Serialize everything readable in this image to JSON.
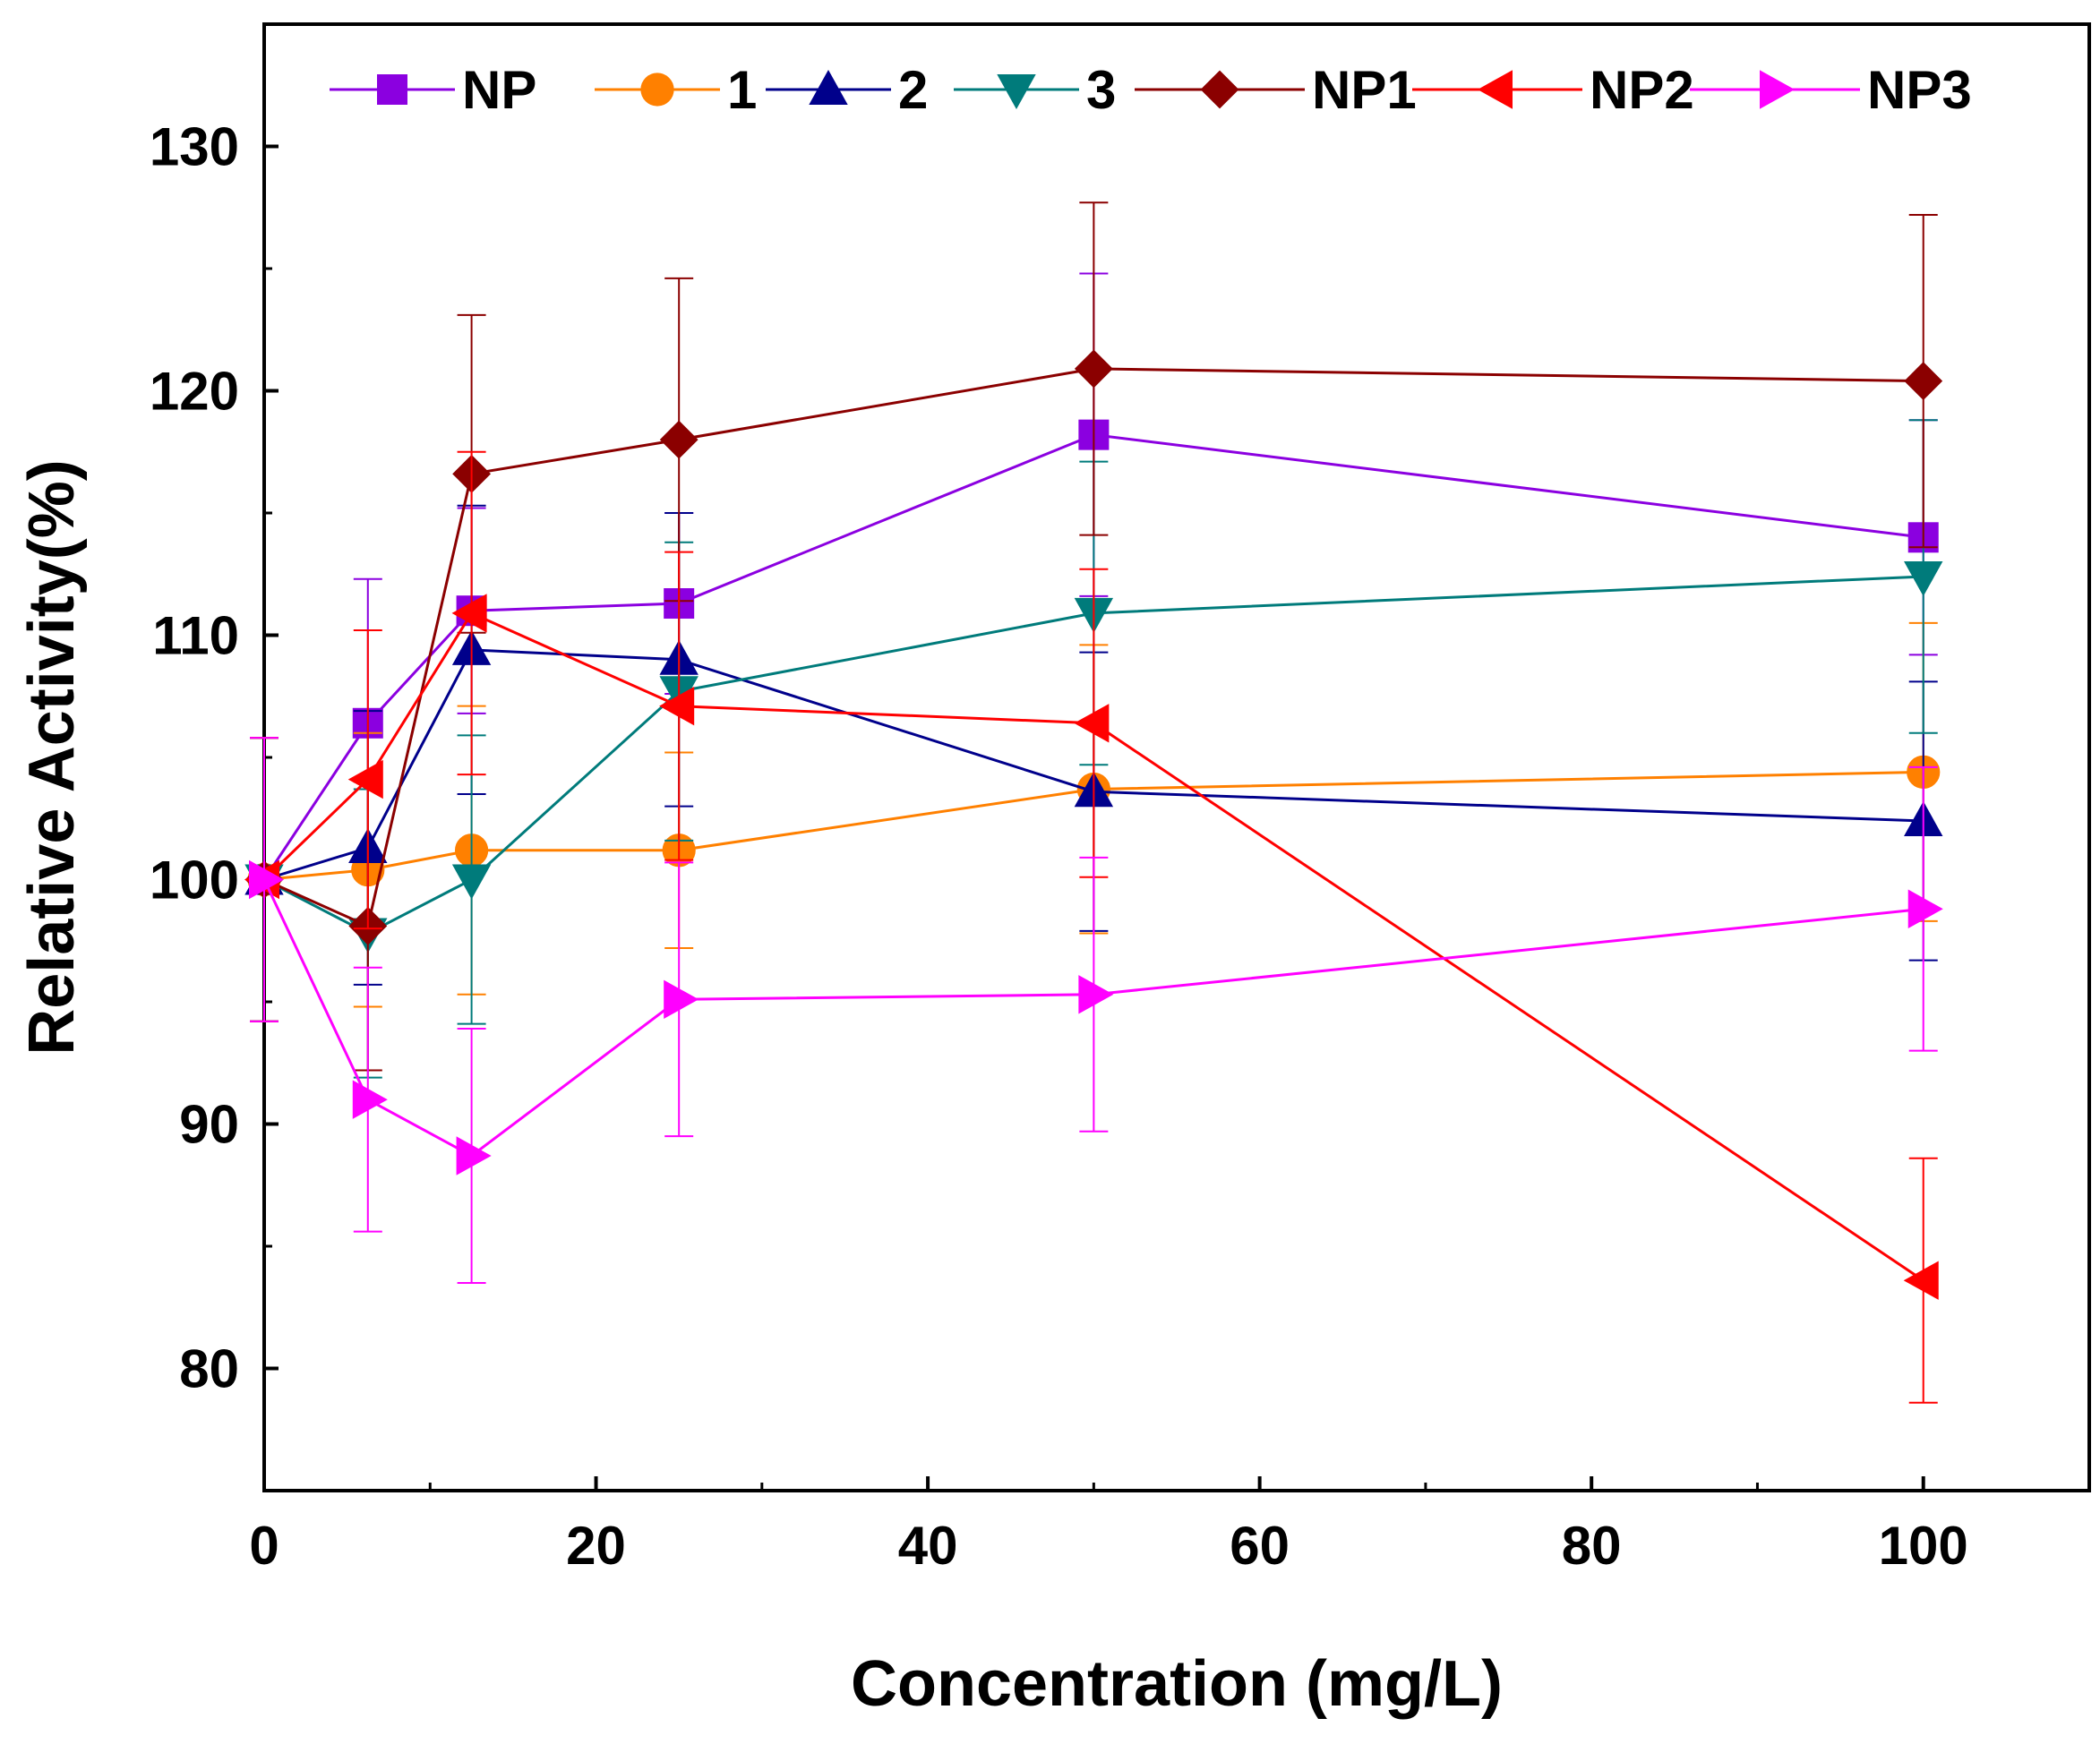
{
  "chart_data": {
    "type": "line",
    "title": "",
    "xlabel": "Concentration (mg/L)",
    "ylabel": "Relative Activity(%)",
    "xlim": [
      0,
      110
    ],
    "ylim": [
      75,
      135
    ],
    "xticks": [
      0,
      20,
      40,
      60,
      80,
      100
    ],
    "yticks": [
      80,
      90,
      100,
      110,
      120,
      130
    ],
    "legend_position": "top",
    "x": [
      0,
      6.25,
      12.5,
      25,
      50,
      100
    ],
    "series": [
      {
        "name": "NP",
        "color": "#8B00E0",
        "marker": "square",
        "values": [
          100,
          106.4,
          111,
          111.3,
          118.2,
          114
        ],
        "errors": [
          5.8,
          5.9,
          4.2,
          3.7,
          6.6,
          4.8
        ]
      },
      {
        "name": "1",
        "color": "#FF8000",
        "marker": "circle",
        "values": [
          100,
          100.4,
          101.2,
          101.2,
          103.7,
          104.4
        ],
        "errors": [
          5.8,
          5.6,
          5.9,
          4.0,
          5.9,
          6.1
        ]
      },
      {
        "name": "2",
        "color": "#00008B",
        "marker": "triangle-up",
        "values": [
          100,
          101.3,
          109.4,
          109.0,
          103.6,
          102.4
        ],
        "errors": [
          5.8,
          5.6,
          5.9,
          6.0,
          5.7,
          5.7
        ]
      },
      {
        "name": "3",
        "color": "#007B7B",
        "marker": "triangle-down",
        "values": [
          100,
          97.8,
          100,
          107.7,
          110.9,
          112.4
        ],
        "errors": [
          5.8,
          5.9,
          5.9,
          6.1,
          6.2,
          6.4
        ]
      },
      {
        "name": "NP1",
        "color": "#8B0000",
        "marker": "diamond",
        "values": [
          100,
          98.1,
          116.6,
          118,
          120.9,
          120.4
        ],
        "errors": [
          5.8,
          5.9,
          6.5,
          6.6,
          6.8,
          6.8
        ]
      },
      {
        "name": "NP2",
        "color": "#FF0000",
        "marker": "triangle-left",
        "values": [
          100,
          104.1,
          110.9,
          107.1,
          106.4,
          83.6
        ],
        "errors": [
          5.8,
          6.1,
          6.6,
          6.3,
          6.3,
          5.0
        ]
      },
      {
        "name": "NP3",
        "color": "#FF00FF",
        "marker": "triangle-right",
        "values": [
          100,
          91.0,
          88.7,
          95.1,
          95.3,
          98.8
        ],
        "errors": [
          5.8,
          5.4,
          5.2,
          5.6,
          5.6,
          5.8
        ]
      }
    ]
  }
}
